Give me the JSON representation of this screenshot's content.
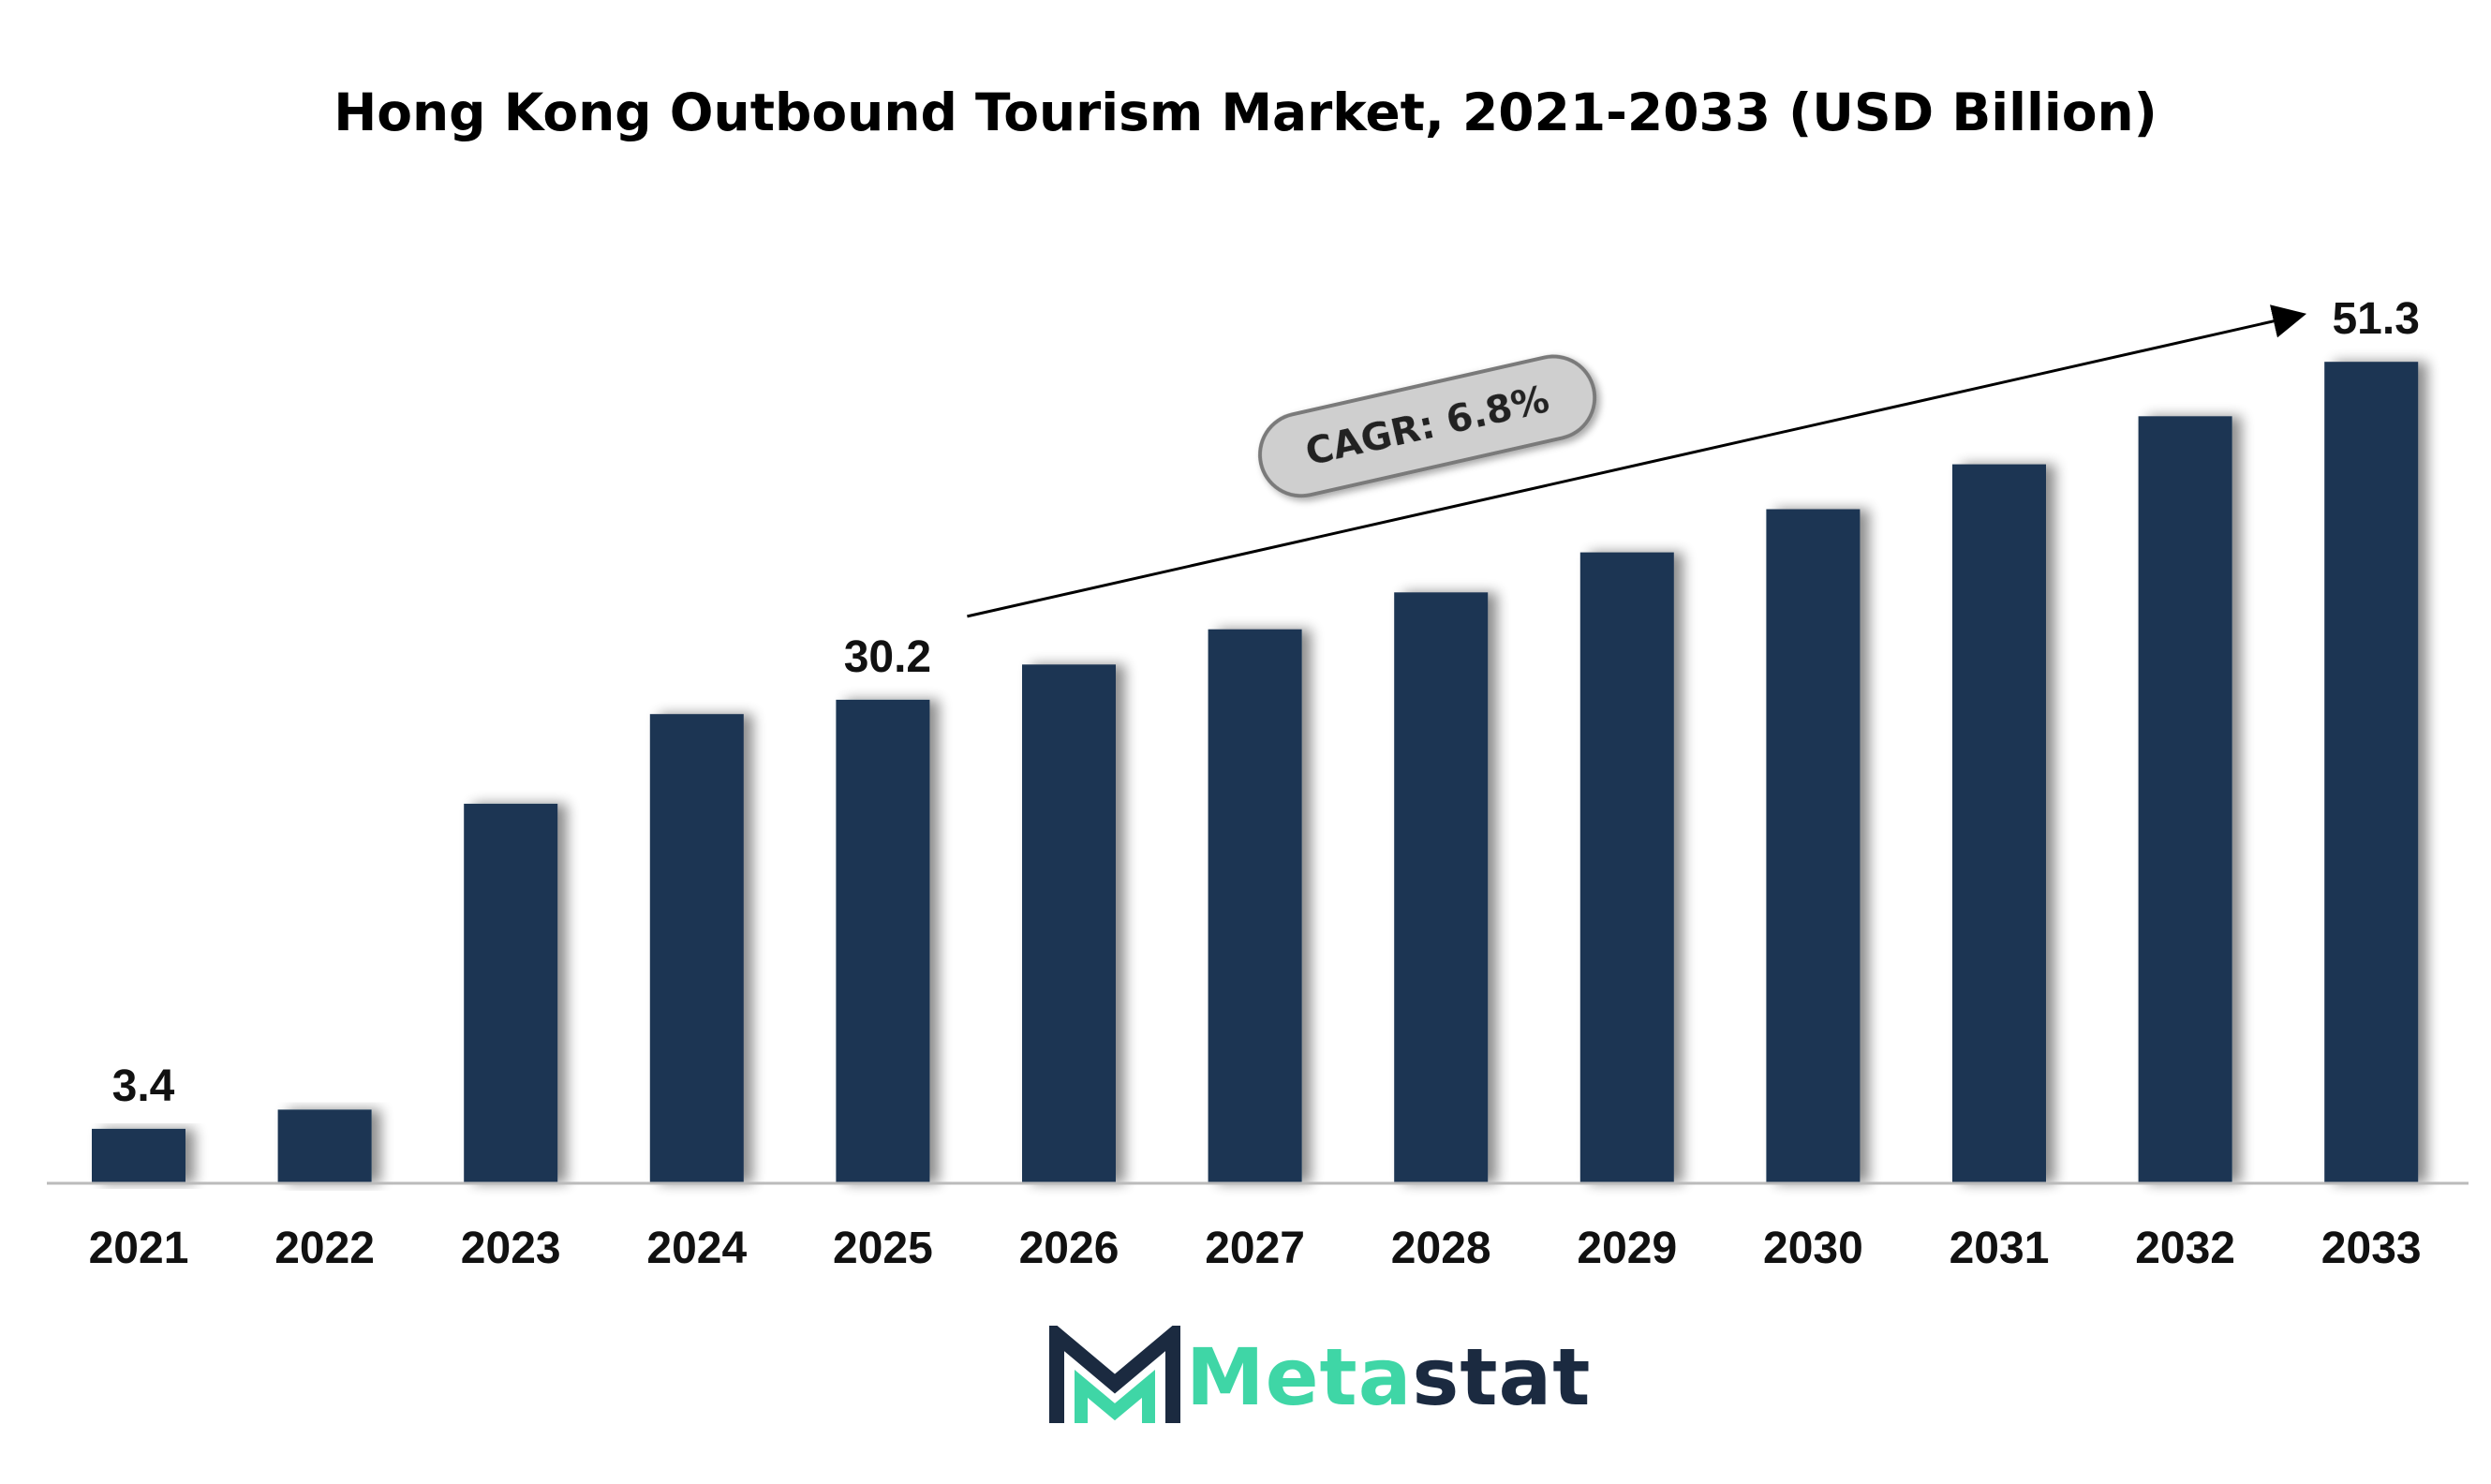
{
  "chart_data": {
    "type": "bar",
    "title": "Hong Kong Outbound Tourism Market, 2021-2033 (USD Billion)",
    "categories": [
      "2021",
      "2022",
      "2023",
      "2024",
      "2025",
      "2026",
      "2027",
      "2028",
      "2029",
      "2030",
      "2031",
      "2032",
      "2033"
    ],
    "values": [
      3.4,
      4.6,
      23.7,
      29.3,
      30.2,
      32.4,
      34.6,
      36.9,
      39.4,
      42.1,
      44.9,
      47.9,
      51.3
    ],
    "data_labels": [
      {
        "category": "2021",
        "text": "3.4"
      },
      {
        "category": "2025",
        "text": "30.2"
      },
      {
        "category": "2033",
        "text": "51.3"
      }
    ],
    "annotation": {
      "text": "CAGR: 6.8%",
      "from": "2025",
      "to": "2033"
    },
    "ylim": [
      0,
      55
    ],
    "grid": false,
    "legend": "none",
    "colors": {
      "bar": "#1b3452",
      "axis": "#bbbbbb",
      "annotation_fill": "#cfcfcf",
      "annotation_stroke": "#7a7a7a"
    }
  },
  "logo": {
    "name": "Metastat",
    "part1": "Meta",
    "part2": "stat",
    "colors": {
      "accent": "#3fd6a6",
      "dark": "#1b2a40"
    }
  }
}
